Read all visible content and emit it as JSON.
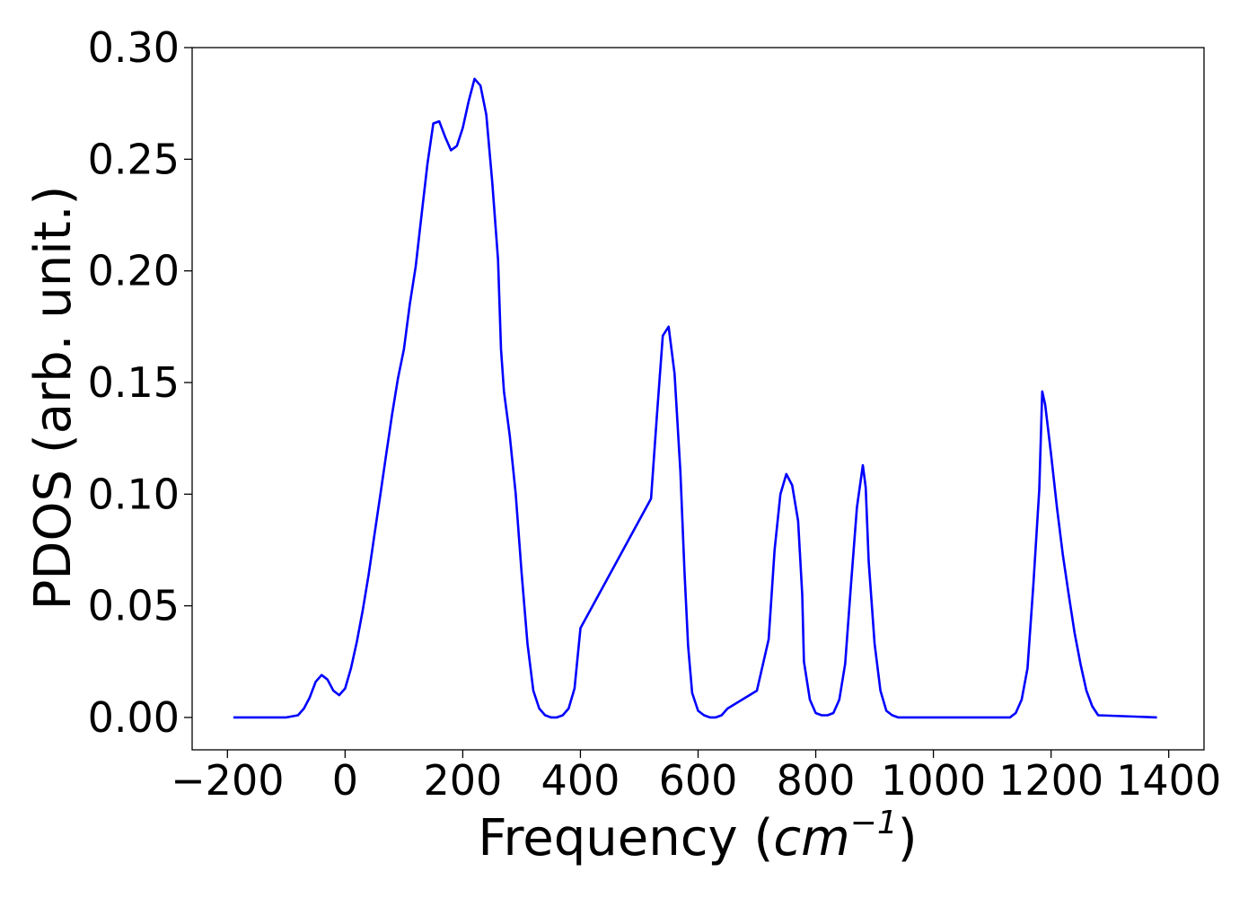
{
  "chart_data": {
    "type": "line",
    "title": "",
    "xlabel_text": "Frequency (",
    "xlabel_math_base": "cm",
    "xlabel_math_exp": "−1",
    "xlabel_close": ")",
    "ylabel": "PDOS (arb. unit.)",
    "xlim": [
      -260,
      1460
    ],
    "ylim": [
      -0.0145,
      0.3
    ],
    "x_ticks": [
      -200,
      0,
      200,
      400,
      600,
      800,
      1000,
      1200,
      1400
    ],
    "x_tick_labels": [
      "−200",
      "0",
      "200",
      "400",
      "600",
      "800",
      "1000",
      "1200",
      "1400"
    ],
    "y_ticks": [
      0.0,
      0.05,
      0.1,
      0.15,
      0.2,
      0.25,
      0.3
    ],
    "y_tick_labels": [
      "0.00",
      "0.05",
      "0.10",
      "0.15",
      "0.20",
      "0.25",
      "0.30"
    ],
    "grid": false,
    "line_color": "#0000ff",
    "series": [
      {
        "x": [
          -190,
          -100,
          -80,
          -70,
          -60,
          -50,
          -40,
          -30,
          -20,
          -10,
          0,
          10,
          20,
          30,
          40,
          50,
          60,
          70,
          80,
          90,
          100,
          110,
          120,
          130,
          140,
          150,
          160,
          170,
          180,
          190,
          200,
          210,
          220,
          230,
          240,
          250,
          260,
          265,
          270,
          280,
          290,
          300,
          310,
          320,
          330,
          340,
          350,
          360,
          370,
          380,
          390,
          400,
          520,
          530,
          540,
          550,
          560,
          570,
          577,
          583,
          590,
          600,
          610,
          620,
          630,
          640,
          650,
          700,
          720,
          730,
          740,
          750,
          760,
          770,
          777,
          780,
          790,
          800,
          810,
          820,
          830,
          840,
          850,
          860,
          870,
          880,
          885,
          890,
          900,
          910,
          920,
          930,
          940,
          1130,
          1140,
          1150,
          1160,
          1170,
          1180,
          1185,
          1190,
          1200,
          1210,
          1220,
          1230,
          1240,
          1250,
          1260,
          1270,
          1280,
          1380
        ],
        "y": [
          0.0,
          0.0,
          0.001,
          0.004,
          0.009,
          0.016,
          0.019,
          0.017,
          0.012,
          0.01,
          0.013,
          0.022,
          0.034,
          0.048,
          0.064,
          0.082,
          0.1,
          0.118,
          0.136,
          0.152,
          0.165,
          0.185,
          0.202,
          0.225,
          0.248,
          0.266,
          0.267,
          0.26,
          0.254,
          0.256,
          0.264,
          0.276,
          0.286,
          0.283,
          0.27,
          0.24,
          0.205,
          0.165,
          0.146,
          0.126,
          0.1,
          0.065,
          0.033,
          0.012,
          0.004,
          0.001,
          0.0,
          0.0,
          0.001,
          0.004,
          0.013,
          0.04,
          0.098,
          0.135,
          0.171,
          0.175,
          0.154,
          0.11,
          0.065,
          0.032,
          0.011,
          0.003,
          0.001,
          0.0,
          0.0,
          0.001,
          0.004,
          0.012,
          0.035,
          0.075,
          0.1,
          0.109,
          0.104,
          0.088,
          0.055,
          0.025,
          0.008,
          0.002,
          0.001,
          0.001,
          0.002,
          0.008,
          0.024,
          0.06,
          0.094,
          0.113,
          0.103,
          0.07,
          0.033,
          0.012,
          0.003,
          0.001,
          0.0,
          0.0,
          0.002,
          0.008,
          0.022,
          0.06,
          0.102,
          0.146,
          0.14,
          0.118,
          0.094,
          0.073,
          0.055,
          0.038,
          0.024,
          0.012,
          0.005,
          0.001,
          0.0
        ]
      }
    ]
  }
}
